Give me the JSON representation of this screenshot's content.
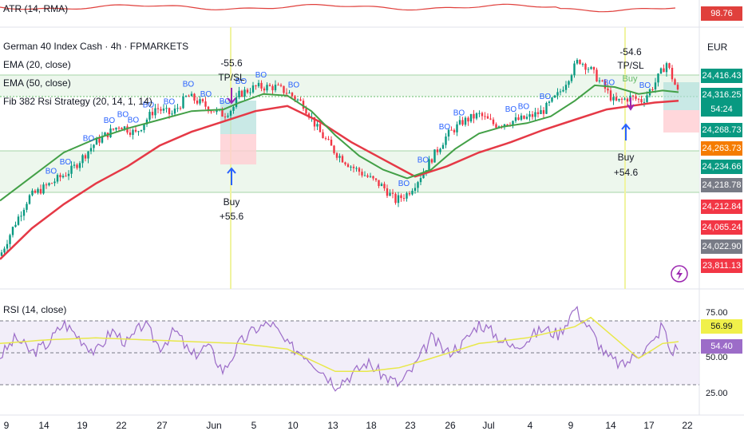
{
  "colors": {
    "ema20": "#43a047",
    "ema50": "#e53946",
    "rsi": "#9c6cc8",
    "rsi_ma": "#e8e84a",
    "up": "#089981",
    "down": "#f23645",
    "atr": "#e0403c",
    "bo": "#2962ff"
  },
  "atr_indicator": {
    "label": "ATR (14, RMA)",
    "value": "98.76"
  },
  "legend": {
    "title": "German 40 Index Cash · 4h · FPMARKETS",
    "ema20": "EMA (20, close)",
    "ema50": "EMA (50, close)",
    "strategy": "Fib 382 Rsi Strategy (20, 14, 1, 14)"
  },
  "currency": "EUR",
  "price_badges": [
    {
      "text": "24,416.43",
      "bg": "#089981"
    },
    {
      "text": "24,316.25",
      "bg": "#089981"
    },
    {
      "text": "54:24",
      "bg": "#089981"
    },
    {
      "text": "24,268.73",
      "bg": "#089981"
    },
    {
      "text": "24,263.73",
      "bg": "#f57c00"
    },
    {
      "text": "24,234.66",
      "bg": "#089981"
    },
    {
      "text": "24,218.78",
      "bg": "#787b86"
    },
    {
      "text": "24,212.84",
      "bg": "#f23645"
    },
    {
      "text": "24,065.24",
      "bg": "#f23645"
    },
    {
      "text": "24,022.90",
      "bg": "#787b86"
    },
    {
      "text": "23,811.13",
      "bg": "#f23645"
    }
  ],
  "trades": [
    {
      "entry_label": "Buy",
      "entry_pnl": "+55.6",
      "exit_pnl": "-55.6",
      "exit_label": "TP/SL"
    },
    {
      "entry_label": "Buy",
      "entry_pnl": "+54.6",
      "exit_pnl": "-54.6",
      "exit_label": "TP/SL"
    }
  ],
  "signal_label": "BO",
  "late_buy_label": "Buy",
  "rsi_indicator": {
    "label": "RSI (14, close)",
    "scale_top": "75.00",
    "scale_bottom": "25.00",
    "scale_mid": "50.00",
    "ma_value": "56.99",
    "rsi_value": "54.40"
  },
  "x_axis_labels": [
    "9",
    "14",
    "19",
    "22",
    "27",
    "Jun",
    "5",
    "10",
    "13",
    "18",
    "23",
    "26",
    "Jul",
    "4",
    "9",
    "14",
    "17",
    "22"
  ],
  "chart_data": {
    "type": "candlestick",
    "title": "German 40 Index Cash · 4h · FPMARKETS",
    "interval": "4h",
    "price_range": [
      23750,
      24480
    ],
    "price_path": [
      [
        0,
        23830
      ],
      [
        18,
        23920
      ],
      [
        36,
        24000
      ],
      [
        60,
        24035
      ],
      [
        90,
        24080
      ],
      [
        120,
        24160
      ],
      [
        150,
        24210
      ],
      [
        170,
        24185
      ],
      [
        195,
        24260
      ],
      [
        215,
        24240
      ],
      [
        235,
        24295
      ],
      [
        250,
        24275
      ],
      [
        265,
        24255
      ],
      [
        280,
        24240
      ],
      [
        292,
        24260
      ],
      [
        300,
        24300
      ],
      [
        320,
        24320
      ],
      [
        345,
        24320
      ],
      [
        360,
        24305
      ],
      [
        380,
        24270
      ],
      [
        400,
        24190
      ],
      [
        420,
        24130
      ],
      [
        440,
        24090
      ],
      [
        460,
        24060
      ],
      [
        480,
        24030
      ],
      [
        495,
        23990
      ],
      [
        510,
        24010
      ],
      [
        525,
        24055
      ],
      [
        540,
        24110
      ],
      [
        560,
        24180
      ],
      [
        580,
        24220
      ],
      [
        600,
        24240
      ],
      [
        620,
        24210
      ],
      [
        640,
        24220
      ],
      [
        660,
        24230
      ],
      [
        680,
        24250
      ],
      [
        700,
        24300
      ],
      [
        715,
        24360
      ],
      [
        725,
        24400
      ],
      [
        740,
        24370
      ],
      [
        755,
        24325
      ],
      [
        770,
        24275
      ],
      [
        790,
        24290
      ],
      [
        805,
        24280
      ],
      [
        820,
        24330
      ],
      [
        835,
        24390
      ],
      [
        850,
        24300
      ]
    ],
    "ema20_path": [
      [
        0,
        23990
      ],
      [
        40,
        24060
      ],
      [
        80,
        24130
      ],
      [
        120,
        24170
      ],
      [
        160,
        24200
      ],
      [
        200,
        24225
      ],
      [
        240,
        24250
      ],
      [
        280,
        24255
      ],
      [
        300,
        24275
      ],
      [
        330,
        24300
      ],
      [
        360,
        24295
      ],
      [
        390,
        24250
      ],
      [
        420,
        24180
      ],
      [
        450,
        24120
      ],
      [
        480,
        24080
      ],
      [
        510,
        24055
      ],
      [
        540,
        24080
      ],
      [
        570,
        24140
      ],
      [
        600,
        24185
      ],
      [
        630,
        24205
      ],
      [
        660,
        24215
      ],
      [
        690,
        24235
      ],
      [
        720,
        24280
      ],
      [
        745,
        24325
      ],
      [
        770,
        24320
      ],
      [
        800,
        24300
      ],
      [
        830,
        24310
      ],
      [
        850,
        24305
      ]
    ],
    "ema50_path": [
      [
        0,
        23820
      ],
      [
        40,
        23910
      ],
      [
        80,
        23980
      ],
      [
        120,
        24040
      ],
      [
        160,
        24090
      ],
      [
        200,
        24150
      ],
      [
        240,
        24190
      ],
      [
        280,
        24220
      ],
      [
        320,
        24250
      ],
      [
        360,
        24265
      ],
      [
        400,
        24220
      ],
      [
        440,
        24160
      ],
      [
        480,
        24110
      ],
      [
        520,
        24060
      ],
      [
        560,
        24090
      ],
      [
        600,
        24130
      ],
      [
        640,
        24160
      ],
      [
        680,
        24195
      ],
      [
        720,
        24225
      ],
      [
        760,
        24255
      ],
      [
        790,
        24265
      ],
      [
        820,
        24275
      ],
      [
        850,
        24280
      ]
    ],
    "levels": [
      24416.43,
      24316.25,
      24268.73,
      24263.73,
      24234.66,
      24218.78,
      24212.84,
      24065.24,
      24022.9,
      23811.13
    ],
    "atr_last": 98.76,
    "rsi": {
      "range": [
        20,
        80
      ],
      "overbought": 70,
      "oversold": 30,
      "last": 54.4,
      "ma_last": 56.99,
      "rsi_path": [
        [
          0,
          48
        ],
        [
          20,
          58
        ],
        [
          40,
          50
        ],
        [
          60,
          55
        ],
        [
          80,
          66
        ],
        [
          100,
          58
        ],
        [
          120,
          50
        ],
        [
          140,
          62
        ],
        [
          160,
          55
        ],
        [
          180,
          66
        ],
        [
          200,
          53
        ],
        [
          220,
          62
        ],
        [
          240,
          48
        ],
        [
          260,
          54
        ],
        [
          280,
          40
        ],
        [
          300,
          55
        ],
        [
          320,
          63
        ],
        [
          340,
          66
        ],
        [
          360,
          54
        ],
        [
          380,
          50
        ],
        [
          400,
          42
        ],
        [
          420,
          33
        ],
        [
          440,
          38
        ],
        [
          460,
          45
        ],
        [
          480,
          38
        ],
        [
          500,
          33
        ],
        [
          520,
          43
        ],
        [
          540,
          58
        ],
        [
          560,
          50
        ],
        [
          580,
          55
        ],
        [
          600,
          66
        ],
        [
          620,
          60
        ],
        [
          640,
          53
        ],
        [
          660,
          57
        ],
        [
          680,
          63
        ],
        [
          700,
          60
        ],
        [
          720,
          74
        ],
        [
          740,
          62
        ],
        [
          760,
          48
        ],
        [
          780,
          43
        ],
        [
          800,
          50
        ],
        [
          820,
          56
        ],
        [
          830,
          66
        ],
        [
          840,
          50
        ],
        [
          850,
          54
        ]
      ],
      "ma_path": [
        [
          0,
          55
        ],
        [
          60,
          57
        ],
        [
          120,
          58
        ],
        [
          180,
          57
        ],
        [
          240,
          56
        ],
        [
          300,
          55
        ],
        [
          360,
          52
        ],
        [
          420,
          40
        ],
        [
          460,
          40
        ],
        [
          500,
          42
        ],
        [
          540,
          47
        ],
        [
          600,
          55
        ],
        [
          660,
          58
        ],
        [
          720,
          64
        ],
        [
          740,
          69
        ],
        [
          770,
          58
        ],
        [
          800,
          47
        ],
        [
          830,
          55
        ],
        [
          850,
          56
        ]
      ]
    }
  }
}
